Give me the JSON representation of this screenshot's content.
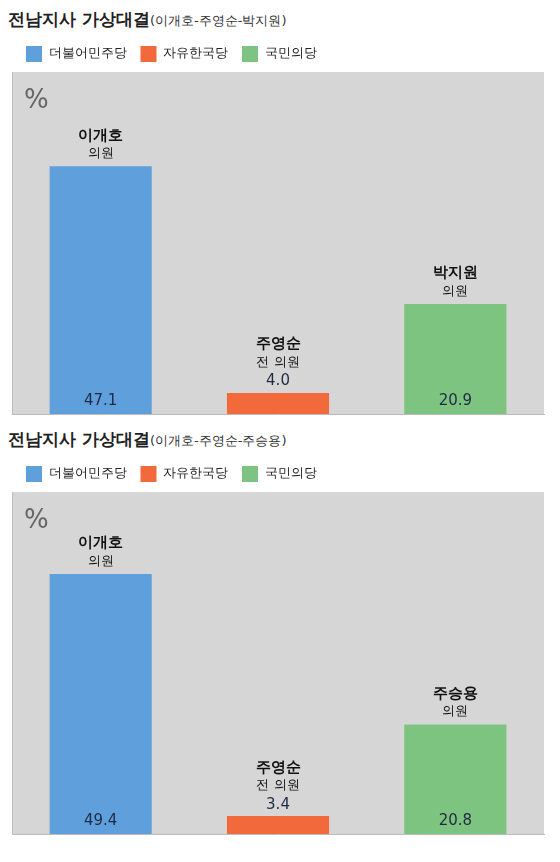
{
  "chart_data": [
    {
      "type": "bar",
      "title": "전남지사 가상대결",
      "subtitle": "(이개호-주영순-박지원)",
      "ylabel": "%",
      "categories": [
        "이개호",
        "주영순",
        "박지원"
      ],
      "annotations": [
        "의원",
        "전 의원",
        "의원"
      ],
      "series": [
        {
          "name": "더불어민주당",
          "color": "#5fa0dc",
          "values": [
            47.1,
            null,
            null
          ],
          "value_labels": [
            "47.1",
            null,
            null
          ]
        },
        {
          "name": "자유한국당",
          "color": "#f26a3c",
          "values": [
            null,
            4.0,
            null
          ],
          "value_labels": [
            null,
            "4.0",
            null
          ]
        },
        {
          "name": "국민의당",
          "color": "#7cc47f",
          "values": [
            null,
            null,
            20.9
          ],
          "value_labels": [
            null,
            null,
            "20.9"
          ]
        }
      ],
      "ylim": [
        0,
        65
      ],
      "legend": "top-left",
      "grid": false,
      "data_labels": true,
      "tick_labels": false
    },
    {
      "type": "bar",
      "title": "전남지사 가상대결",
      "subtitle": "(이개호-주영순-주승용)",
      "ylabel": "%",
      "categories": [
        "이개호",
        "주영순",
        "주승용"
      ],
      "annotations": [
        "의원",
        "전 의원",
        "의원"
      ],
      "series": [
        {
          "name": "더불어민주당",
          "color": "#5fa0dc",
          "values": [
            49.4,
            null,
            null
          ],
          "value_labels": [
            "49.4",
            null,
            null
          ]
        },
        {
          "name": "자유한국당",
          "color": "#f26a3c",
          "values": [
            null,
            3.4,
            null
          ],
          "value_labels": [
            null,
            "3.4",
            null
          ]
        },
        {
          "name": "국민의당",
          "color": "#7cc47f",
          "values": [
            null,
            null,
            20.8
          ],
          "value_labels": [
            null,
            null,
            "20.8"
          ]
        }
      ],
      "ylim": [
        0,
        65
      ],
      "legend": "top-left",
      "grid": false,
      "data_labels": true,
      "tick_labels": false
    }
  ]
}
